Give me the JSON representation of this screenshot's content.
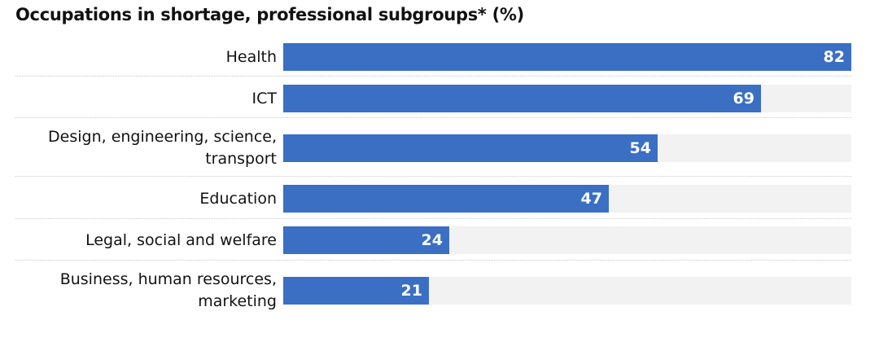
{
  "chart_data": {
    "type": "bar",
    "orientation": "horizontal",
    "title": "Occupations in shortage, professional subgroups* (%)",
    "categories": [
      "Health",
      "ICT",
      "Design, engineering, science, transport",
      "Education",
      "Legal, social and welfare",
      "Business, human resources, marketing"
    ],
    "label_lines": [
      [
        "Health"
      ],
      [
        "ICT"
      ],
      [
        "Design, engineering, science,",
        "transport"
      ],
      [
        "Education"
      ],
      [
        "Legal, social and welfare"
      ],
      [
        "Business, human resources,",
        "marketing"
      ]
    ],
    "values": [
      82,
      69,
      54,
      47,
      24,
      21
    ],
    "xlim": [
      0,
      82
    ],
    "grid": false,
    "legend": "none",
    "colors": {
      "bar": "#3a6fc4",
      "track": "#f2f2f2",
      "value_text": "#ffffff"
    }
  }
}
